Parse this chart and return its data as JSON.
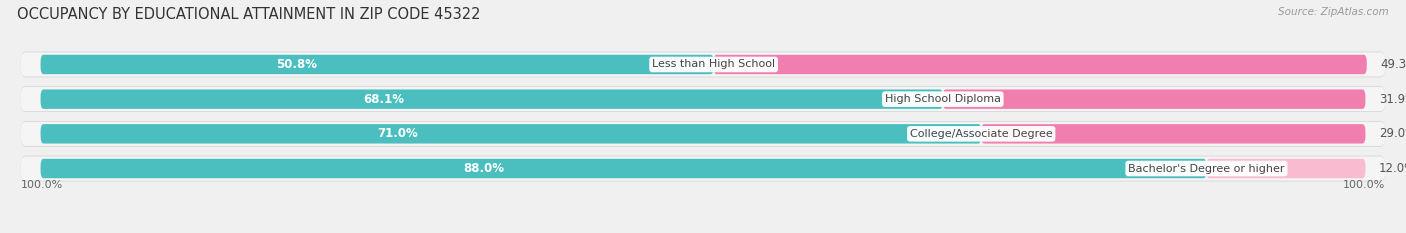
{
  "title": "OCCUPANCY BY EDUCATIONAL ATTAINMENT IN ZIP CODE 45322",
  "source": "Source: ZipAtlas.com",
  "categories": [
    "Less than High School",
    "High School Diploma",
    "College/Associate Degree",
    "Bachelor's Degree or higher"
  ],
  "owner_pct": [
    50.8,
    68.1,
    71.0,
    88.0
  ],
  "renter_pct": [
    49.3,
    31.9,
    29.0,
    12.0
  ],
  "owner_color": "#4BBFBF",
  "renter_color": "#F07FAF",
  "renter_color_light": "#F8BBD0",
  "bg_color": "#f0f0f0",
  "row_bg_color": "#e8e8e8",
  "row_inner_color": "#f8f8f8",
  "title_fontsize": 10.5,
  "label_fontsize": 8.5,
  "tick_fontsize": 8,
  "source_fontsize": 7.5,
  "bar_height": 0.62,
  "x_left_label": "100.0%",
  "x_right_label": "100.0%",
  "total_width": 100.0
}
